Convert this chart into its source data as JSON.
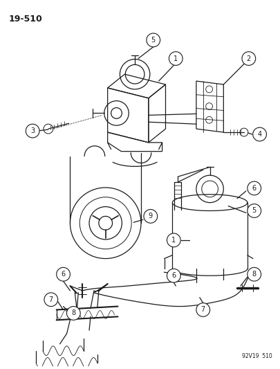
{
  "page_id": "19-510",
  "footer": "92V19  510",
  "bg_color": "#ffffff",
  "line_color": "#1a1a1a",
  "fig_width": 4.06,
  "fig_height": 5.33,
  "dpi": 100
}
